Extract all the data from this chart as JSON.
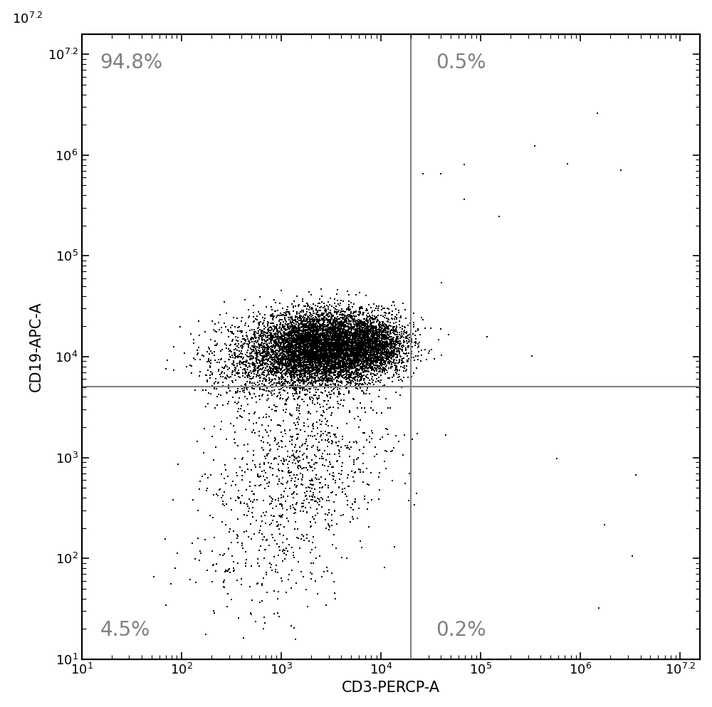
{
  "xlog_min": 1,
  "xlog_max": 7.2,
  "ylog_min": 1,
  "ylog_max": 7.2,
  "xlabel": "CD3-PERCP-A",
  "ylabel": "CD19-APC-A",
  "gate_x_log": 4.3,
  "gate_y_log": 3.7,
  "quadrant_labels": {
    "UL": "94.8%",
    "UR": "0.5%",
    "LL": "4.5%",
    "LR": "0.2%"
  },
  "main_cluster_center_x_log": 3.4,
  "main_cluster_center_y_log": 4.1,
  "background_color": "#ffffff",
  "dot_color": "#000000",
  "gate_line_color": "#808080",
  "label_color": "#808080",
  "tick_label_fontsize": 13,
  "axis_label_fontsize": 15,
  "quadrant_label_fontsize": 20
}
